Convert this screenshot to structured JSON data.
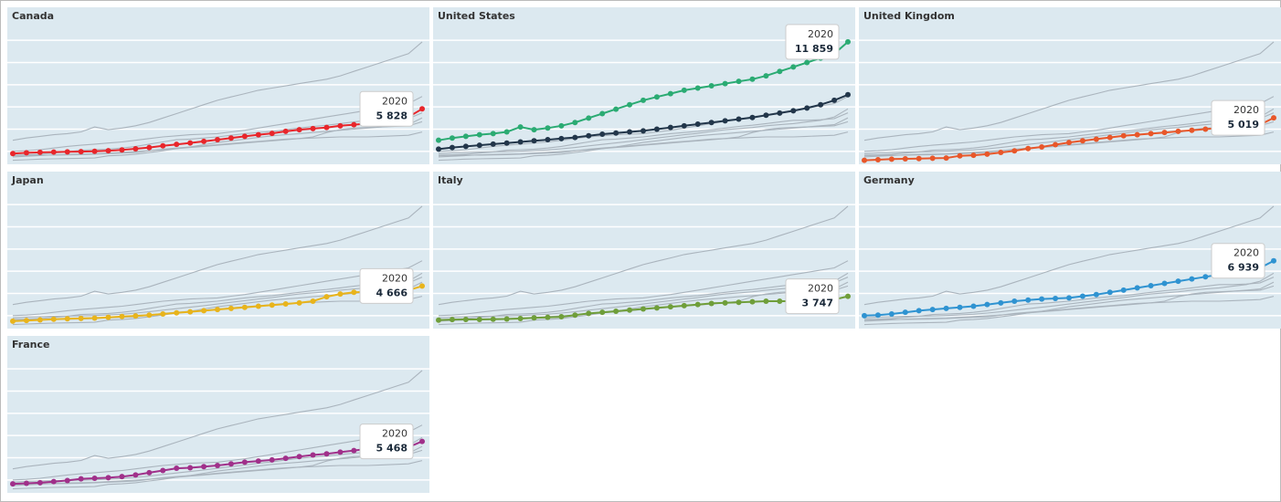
{
  "chart_data": {
    "type": "line",
    "layout": "small-multiples",
    "columns": 3,
    "end_year": "2020",
    "ylim": [
      1000,
      13000
    ],
    "yticks": [
      2000,
      4000,
      6000,
      8000,
      10000,
      12000
    ],
    "grid": true,
    "panel_color": "#dce9f0",
    "context_color": "#aab4bd",
    "series": [
      {
        "name": "Canada",
        "color": "#e8262b",
        "end_label": "5 828",
        "values": [
          1800,
          1870,
          1910,
          1940,
          1960,
          1980,
          2010,
          2060,
          2130,
          2230,
          2350,
          2500,
          2630,
          2760,
          2900,
          3050,
          3200,
          3350,
          3500,
          3620,
          3800,
          3950,
          4050,
          4150,
          4300,
          4400,
          4500,
          4650,
          4800,
          5100,
          5828
        ]
      },
      {
        "name": "United States",
        "color": "#2bab73",
        "end_label": "11 859",
        "values": [
          3000,
          3200,
          3350,
          3500,
          3600,
          3750,
          4200,
          3950,
          4100,
          4300,
          4600,
          5000,
          5400,
          5800,
          6200,
          6600,
          6900,
          7200,
          7500,
          7700,
          7900,
          8100,
          8300,
          8500,
          8800,
          9200,
          9600,
          10000,
          10400,
          10800,
          11859
        ],
        "secondary": {
          "color": "#22364a",
          "values": [
            2200,
            2350,
            2450,
            2550,
            2650,
            2750,
            2850,
            2950,
            3050,
            3150,
            3250,
            3400,
            3550,
            3650,
            3750,
            3850,
            4000,
            4150,
            4300,
            4450,
            4600,
            4750,
            4900,
            5050,
            5250,
            5450,
            5650,
            5900,
            6200,
            6600,
            7100
          ]
        }
      },
      {
        "name": "United Kingdom",
        "color": "#e8572a",
        "end_label": "5 019",
        "values": [
          1200,
          1250,
          1300,
          1330,
          1350,
          1380,
          1400,
          1600,
          1650,
          1750,
          1900,
          2050,
          2250,
          2400,
          2600,
          2800,
          2950,
          3100,
          3250,
          3400,
          3500,
          3600,
          3700,
          3800,
          3900,
          4000,
          4100,
          4200,
          4300,
          4400,
          5019
        ]
      },
      {
        "name": "Japan",
        "color": "#e8b41c",
        "end_label": "4 666",
        "values": [
          1500,
          1560,
          1620,
          1680,
          1720,
          1750,
          1780,
          1850,
          1920,
          1980,
          2050,
          2150,
          2250,
          2350,
          2450,
          2550,
          2650,
          2750,
          2850,
          2950,
          3050,
          3150,
          3300,
          3700,
          3950,
          4100,
          4150,
          4200,
          4250,
          4300,
          4666
        ]
      },
      {
        "name": "Italy",
        "color": "#6f9e3a",
        "end_label": "3 747",
        "values": [
          1600,
          1650,
          1660,
          1660,
          1680,
          1700,
          1740,
          1800,
          1850,
          1900,
          2050,
          2200,
          2300,
          2400,
          2500,
          2600,
          2700,
          2800,
          2900,
          3000,
          3100,
          3150,
          3200,
          3250,
          3300,
          3300,
          3300,
          3350,
          3400,
          3450,
          3747
        ]
      },
      {
        "name": "Germany",
        "color": "#2f93d1",
        "end_label": "6 939",
        "values": [
          2000,
          2050,
          2150,
          2300,
          2450,
          2550,
          2650,
          2750,
          2850,
          3000,
          3150,
          3300,
          3400,
          3500,
          3550,
          3600,
          3750,
          3900,
          4100,
          4300,
          4500,
          4700,
          4900,
          5100,
          5300,
          5500,
          5700,
          5900,
          6100,
          6300,
          6939
        ]
      },
      {
        "name": "France",
        "color": "#a0308a",
        "end_label": "5 468",
        "values": [
          1650,
          1700,
          1750,
          1850,
          1950,
          2100,
          2150,
          2200,
          2300,
          2450,
          2650,
          2850,
          3050,
          3100,
          3200,
          3300,
          3450,
          3600,
          3700,
          3800,
          3950,
          4100,
          4250,
          4350,
          4500,
          4650,
          4800,
          4800,
          4850,
          4950,
          5468
        ]
      }
    ]
  }
}
